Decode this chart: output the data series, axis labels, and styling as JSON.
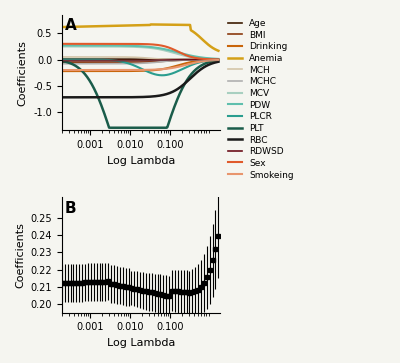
{
  "legend_labels": [
    "Age",
    "BMI",
    "Drinking",
    "Anemia",
    "MCH",
    "MCHC",
    "MCV",
    "PDW",
    "PLCR",
    "PLT",
    "RBC",
    "RDWSD",
    "Sex",
    "Smokeing"
  ],
  "legend_colors": [
    "#3d1c02",
    "#8b3a0f",
    "#c8650a",
    "#d4a017",
    "#d4c5a9",
    "#b0b0b0",
    "#a8cfc0",
    "#5fbfad",
    "#2a9d8f",
    "#1a5c4a",
    "#1a1a1a",
    "#6b0f1a",
    "#e05a2b",
    "#e8956d"
  ],
  "panel_a_label": "A",
  "panel_b_label": "B",
  "xlabel": "Log Lambda",
  "ylabel_a": "Coefficients",
  "ylabel_b": "Coefficients",
  "xtick_labels": [
    "0.001",
    "0.010",
    "0.100"
  ],
  "xtick_vals": [
    0.001,
    0.01,
    0.1
  ],
  "yticks_a": [
    -1.0,
    -0.5,
    0.0,
    0.5
  ],
  "ytick_labels_a": [
    "-1.0",
    "-0.5",
    "0.0",
    "0.5"
  ],
  "ylim_a": [
    -1.35,
    0.85
  ],
  "yticks_b": [
    0.2,
    0.21,
    0.22,
    0.23,
    0.24,
    0.25
  ],
  "ytick_labels_b": [
    "0.20",
    "0.21",
    "0.22",
    "0.23",
    "0.24",
    "0.25"
  ],
  "ylim_b": [
    0.195,
    0.262
  ],
  "xlim_log_min": -3.7,
  "xlim_log_max": 0.25,
  "bg_color": "#f5f5f0"
}
